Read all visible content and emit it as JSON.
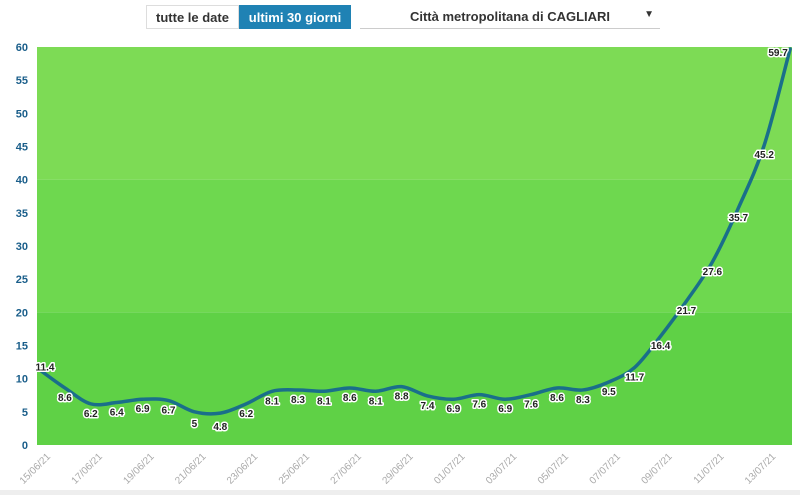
{
  "controls": {
    "all_dates_label": "tutte le date",
    "last30_label": "ultimi 30 giorni",
    "area_select_value": "Città metropolitana di CAGLIARI"
  },
  "colors": {
    "line": "#1a6f8a",
    "band_light": "#7ddb55",
    "band_dark": "#5fd146",
    "active_button": "#1f82b4",
    "axis_text": "#1a5e8a",
    "xtick_text": "#aaaaaa"
  },
  "chart_data": {
    "type": "line",
    "title": "",
    "xlabel": "",
    "ylabel": "",
    "ylim": [
      0,
      60
    ],
    "yticks": [
      "0",
      "5",
      "10",
      "15",
      "20",
      "25",
      "30",
      "35",
      "40",
      "45",
      "50",
      "55",
      "60"
    ],
    "xtick_labels": [
      "15/06/21",
      "17/06/21",
      "19/06/21",
      "21/06/21",
      "23/06/21",
      "25/06/21",
      "27/06/21",
      "29/06/21",
      "01/07/21",
      "03/07/21",
      "05/07/21",
      "07/07/21",
      "09/07/21",
      "11/07/21",
      "13/07/21"
    ],
    "series": [
      {
        "x": [
          "15/06/21",
          "16/06/21",
          "17/06/21",
          "18/06/21",
          "19/06/21",
          "20/06/21",
          "21/06/21",
          "22/06/21",
          "23/06/21",
          "24/06/21",
          "25/06/21",
          "26/06/21",
          "27/06/21",
          "28/06/21",
          "29/06/21",
          "30/06/21",
          "01/07/21",
          "02/07/21",
          "03/07/21",
          "04/07/21",
          "05/07/21",
          "06/07/21",
          "07/07/21",
          "08/07/21",
          "09/07/21",
          "10/07/21",
          "11/07/21",
          "12/07/21",
          "13/07/21",
          "14/07/21"
        ],
        "values": [
          11.4,
          8.6,
          6.2,
          6.4,
          6.9,
          6.7,
          5,
          4.8,
          6.2,
          8.1,
          8.3,
          8.1,
          8.6,
          8.1,
          8.8,
          7.4,
          6.9,
          7.6,
          6.9,
          7.6,
          8.6,
          8.3,
          9.5,
          11.7,
          16.4,
          21.7,
          27.6,
          35.7,
          45.2,
          59.7
        ]
      }
    ],
    "grid": false,
    "bands": [
      {
        "from": 0,
        "to": 20,
        "color": "#5fd146"
      },
      {
        "from": 20,
        "to": 40,
        "color": "#6ed84f"
      },
      {
        "from": 40,
        "to": 60,
        "color": "#7ddb55"
      }
    ]
  }
}
